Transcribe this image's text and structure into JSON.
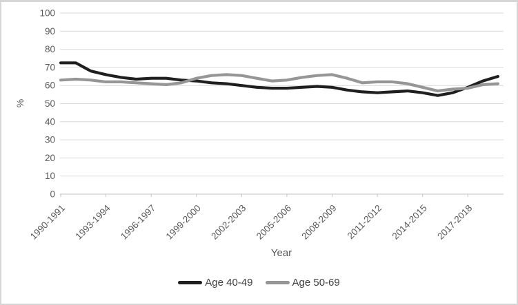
{
  "colors": {
    "frame_border": "#d6d6d6",
    "background": "#ffffff",
    "gridline": "#d9d9d9",
    "axis_line": "#c2c2c2",
    "tick_text": "#595959",
    "legend_text": "#3f3f3f"
  },
  "chart_data": {
    "type": "line",
    "title": "",
    "xlabel": "Year",
    "ylabel": "%",
    "ylim": [
      0,
      100
    ],
    "y_ticks": [
      0,
      10,
      20,
      30,
      40,
      50,
      60,
      70,
      80,
      90,
      100
    ],
    "grid": "horizontal-only",
    "legend_position": "bottom-center",
    "x_tick_every": 3,
    "x_tick_labels": [
      "1990-1991",
      "1993-1994",
      "1996-1997",
      "1999-2000",
      "2002-2003",
      "2005-2006",
      "2008-2009",
      "2011-2012",
      "2014-2015",
      "2017-2018"
    ],
    "categories": [
      "1990-1991",
      "1991-1992",
      "1992-1993",
      "1993-1994",
      "1994-1995",
      "1995-1996",
      "1996-1997",
      "1997-1998",
      "1998-1999",
      "1999-2000",
      "2000-2001",
      "2001-2002",
      "2002-2003",
      "2003-2004",
      "2004-2005",
      "2005-2006",
      "2006-2007",
      "2007-2008",
      "2008-2009",
      "2009-2010",
      "2010-2011",
      "2011-2012",
      "2012-2013",
      "2013-2014",
      "2014-2015",
      "2015-2016",
      "2016-2017",
      "2017-2018",
      "2018-2019",
      "2019-2020"
    ],
    "series": [
      {
        "name": "Age 40-49",
        "color": "#1f1f1f",
        "values": [
          72.5,
          72.5,
          68,
          66,
          64.5,
          63.5,
          64,
          64,
          63,
          62.5,
          61.5,
          61,
          60,
          59,
          58.5,
          58.5,
          59,
          59.5,
          59,
          57.5,
          56.5,
          56,
          56.5,
          57,
          56,
          54.5,
          56,
          59,
          62.5,
          65
        ]
      },
      {
        "name": "Age 50-69",
        "color": "#969696",
        "values": [
          63,
          63.5,
          63,
          62,
          62,
          61.5,
          61,
          60.5,
          61.5,
          64,
          65.5,
          66,
          65.5,
          64,
          62.5,
          63,
          64.5,
          65.5,
          66,
          64,
          61.5,
          62,
          62,
          61,
          59,
          57,
          58,
          58.5,
          60.5,
          61
        ]
      }
    ]
  }
}
